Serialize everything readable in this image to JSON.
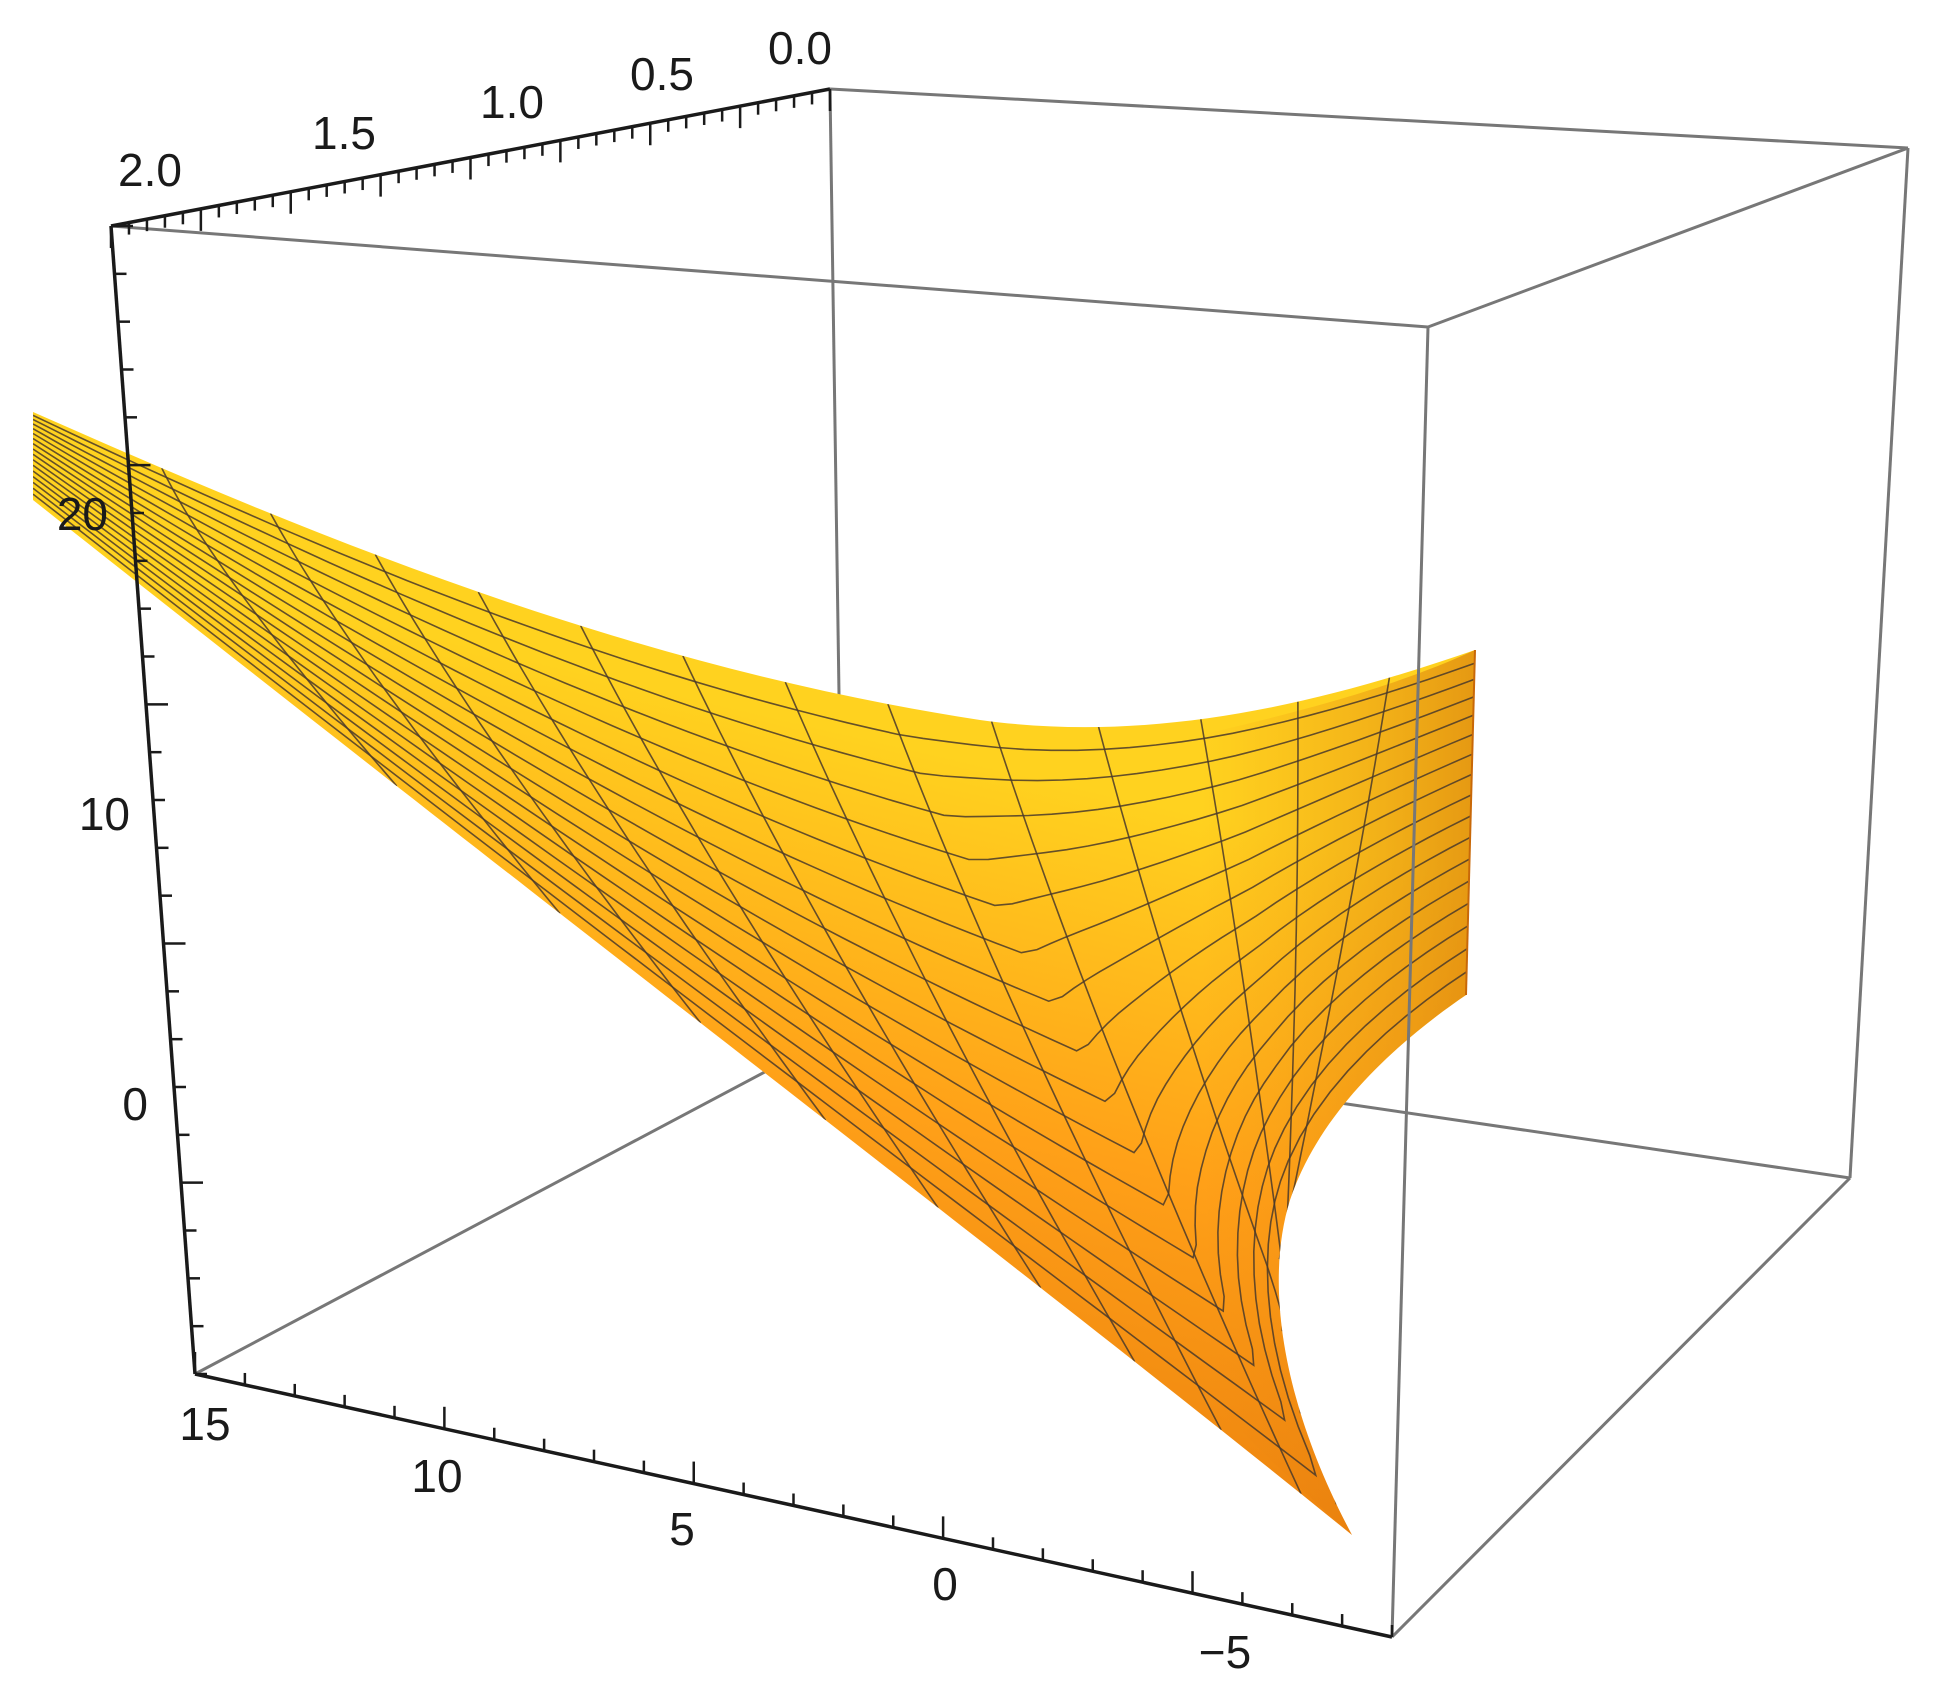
{
  "chart_data": {
    "type": "surface3d",
    "title": "",
    "axes": {
      "t": {
        "label": "",
        "range": [
          0,
          2
        ],
        "ticks": [
          "0.0",
          "0.5",
          "1.0",
          "1.5",
          "2.0"
        ]
      },
      "x": {
        "label": "",
        "range": [
          -7.5,
          16
        ],
        "ticks": [
          "15",
          "10",
          "5",
          "0",
          "−5"
        ]
      },
      "z": {
        "label": "",
        "range": [
          -9,
          28
        ],
        "ticks": [
          "20",
          "10",
          "0"
        ]
      }
    },
    "grid": false,
    "box": true,
    "surface": {
      "mesh_t_lines": 17,
      "mesh_x_lines": 14,
      "colors": {
        "light": "#ffd21f",
        "mid": "#ff9a14",
        "dark": "#e0730a"
      }
    }
  }
}
